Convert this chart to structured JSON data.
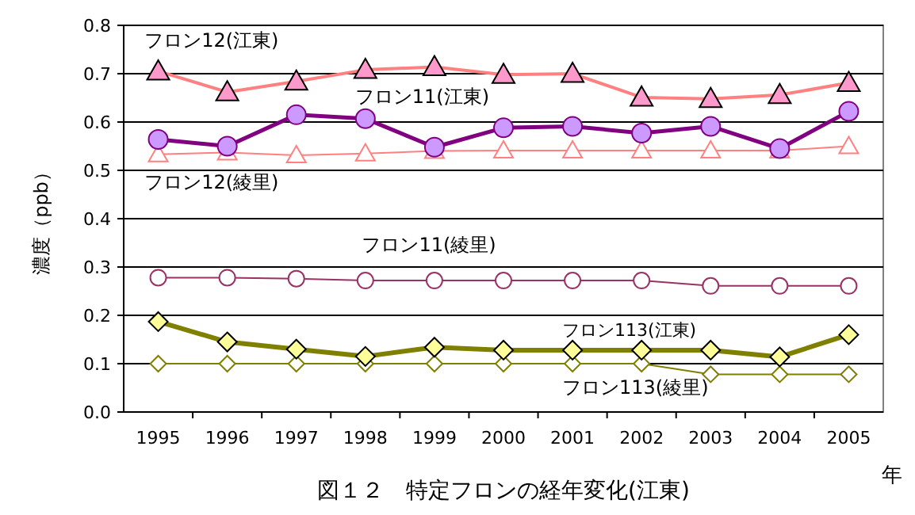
{
  "chart_data": {
    "type": "line",
    "title": "図１２　特定フロンの経年変化(江東)",
    "xlabel": "年",
    "ylabel": "濃度（ppb）",
    "categories": [
      "1995",
      "1996",
      "1997",
      "1998",
      "1999",
      "2000",
      "2001",
      "2002",
      "2003",
      "2004",
      "2005"
    ],
    "ylim": [
      0,
      0.8
    ],
    "yticks": [
      {
        "value": 0,
        "label": "0.0"
      },
      {
        "value": 0.1,
        "label": "0.1"
      },
      {
        "value": 0.2,
        "label": "0.2"
      },
      {
        "value": 0.3,
        "label": "0.3"
      },
      {
        "value": 0.4,
        "label": "0.4"
      },
      {
        "value": 0.5,
        "label": "0.5"
      },
      {
        "value": 0.6,
        "label": "0.6"
      },
      {
        "value": 0.7,
        "label": "0.7"
      },
      {
        "value": 0.8,
        "label": "0.8"
      }
    ],
    "grid": "y",
    "series": [
      {
        "name": "フロン12(江東)",
        "color": "#ff8080",
        "marker": "triangle",
        "values": [
          0.705,
          0.662,
          0.684,
          0.708,
          0.714,
          0.698,
          0.7,
          0.651,
          0.648,
          0.656,
          0.681
        ]
      },
      {
        "name": "フロン11(江東)",
        "color": "#800080",
        "marker": "circle",
        "values": [
          0.564,
          0.55,
          0.615,
          0.607,
          0.548,
          0.588,
          0.591,
          0.577,
          0.591,
          0.545,
          0.622
        ]
      },
      {
        "name": "フロン12(綾里)",
        "color": "#ff8080",
        "marker": "triangle",
        "values": [
          0.533,
          0.537,
          0.531,
          0.535,
          0.54,
          0.541,
          0.541,
          0.541,
          0.541,
          0.541,
          0.55
        ]
      },
      {
        "name": "フロン11(綾里)",
        "color": "#993366",
        "marker": "circle",
        "values": [
          0.278,
          0.278,
          0.276,
          0.272,
          0.272,
          0.272,
          0.272,
          0.272,
          0.261,
          0.261,
          0.261
        ]
      },
      {
        "name": "フロン113(江東)",
        "color": "#808000",
        "marker": "diamond",
        "values": [
          0.187,
          0.145,
          0.13,
          0.115,
          0.134,
          0.128,
          0.128,
          0.128,
          0.128,
          0.114,
          0.16
        ]
      },
      {
        "name": "フロン113(綾里)",
        "color": "#808000",
        "marker": "diamond",
        "values": [
          0.1,
          0.1,
          0.1,
          0.1,
          0.1,
          0.1,
          0.1,
          0.1,
          0.078,
          0.078,
          0.078
        ]
      }
    ]
  }
}
